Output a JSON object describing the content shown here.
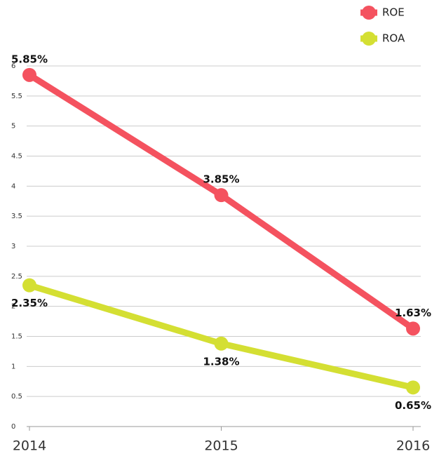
{
  "chart_data": {
    "type": "line",
    "categories": [
      "2014",
      "2015",
      "2016"
    ],
    "series": [
      {
        "name": "ROE",
        "color": "#f4525f",
        "values": [
          5.85,
          3.85,
          1.63
        ],
        "value_labels": [
          "5.85%",
          "3.85%",
          "1.63%"
        ]
      },
      {
        "name": "ROA",
        "color": "#d4df33",
        "values": [
          2.35,
          1.38,
          0.65
        ],
        "value_labels": [
          "2.35%",
          "1.38%",
          "0.65%"
        ]
      }
    ],
    "ylim": [
      0,
      6
    ],
    "yticks": [
      0,
      0.5,
      1,
      1.5,
      2,
      2.5,
      3,
      3.5,
      4,
      4.5,
      5,
      5.5,
      6
    ],
    "grid": true,
    "legend": "top-right"
  }
}
